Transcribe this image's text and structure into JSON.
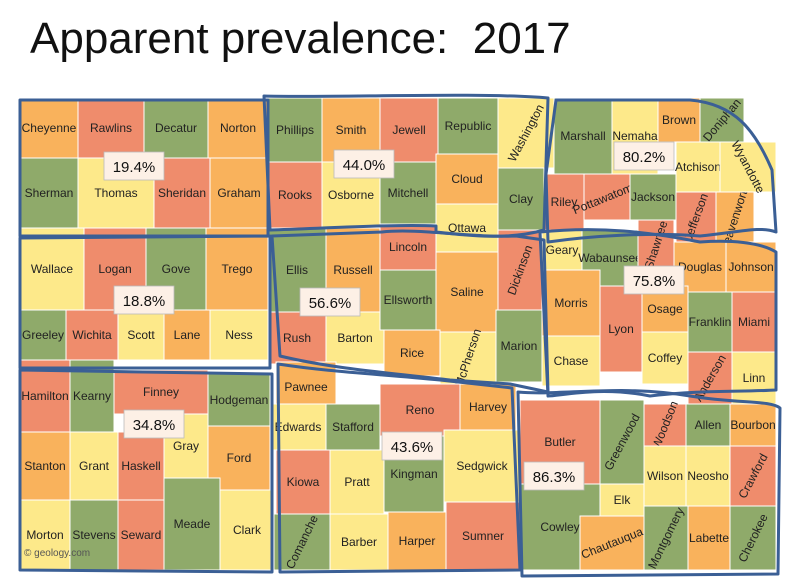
{
  "title": "Apparent prevalence:  2017",
  "watermark": "© geology.com",
  "colors": {
    "green": "#8faa6a",
    "yellow": "#fde98a",
    "orange": "#f9b25c",
    "salmon": "#ef8c6c",
    "region_line": "#3b5f95",
    "county_border": "#ffffff",
    "box_fill": "#fdf0e6"
  },
  "regions": [
    {
      "id": "nw",
      "label": "19.4%"
    },
    {
      "id": "nc",
      "label": "44.0%"
    },
    {
      "id": "ne",
      "label": "80.2%"
    },
    {
      "id": "wc",
      "label": "18.8%"
    },
    {
      "id": "c",
      "label": "56.6%"
    },
    {
      "id": "ec",
      "label": "75.8%"
    },
    {
      "id": "sw",
      "label": "34.8%"
    },
    {
      "id": "sc",
      "label": "43.6%"
    },
    {
      "id": "se",
      "label": "86.3%"
    }
  ],
  "counties": [
    {
      "name": "Cheyenne",
      "color": "orange"
    },
    {
      "name": "Rawlins",
      "color": "salmon"
    },
    {
      "name": "Decatur",
      "color": "green"
    },
    {
      "name": "Norton",
      "color": "orange"
    },
    {
      "name": "Phillips",
      "color": "green"
    },
    {
      "name": "Smith",
      "color": "orange"
    },
    {
      "name": "Jewell",
      "color": "salmon"
    },
    {
      "name": "Republic",
      "color": "green"
    },
    {
      "name": "Washington",
      "color": "yellow"
    },
    {
      "name": "Marshall",
      "color": "green"
    },
    {
      "name": "Nemaha",
      "color": "yellow"
    },
    {
      "name": "Brown",
      "color": "orange"
    },
    {
      "name": "Doniphan",
      "color": "green"
    },
    {
      "name": "Sherman",
      "color": "green"
    },
    {
      "name": "Thomas",
      "color": "yellow"
    },
    {
      "name": "Sheridan",
      "color": "salmon"
    },
    {
      "name": "Graham",
      "color": "orange"
    },
    {
      "name": "Rooks",
      "color": "salmon"
    },
    {
      "name": "Osborne",
      "color": "yellow"
    },
    {
      "name": "Mitchell",
      "color": "green"
    },
    {
      "name": "Cloud",
      "color": "orange"
    },
    {
      "name": "Clay",
      "color": "green"
    },
    {
      "name": "Riley",
      "color": "salmon"
    },
    {
      "name": "Pottawatomie",
      "color": "salmon"
    },
    {
      "name": "Jackson",
      "color": "green"
    },
    {
      "name": "Atchison",
      "color": "yellow"
    },
    {
      "name": "Jefferson",
      "color": "salmon"
    },
    {
      "name": "Leavenworth",
      "color": "orange"
    },
    {
      "name": "Wyandotte",
      "color": "yellow"
    },
    {
      "name": "Ottawa",
      "color": "yellow"
    },
    {
      "name": "Wallace",
      "color": "yellow"
    },
    {
      "name": "Logan",
      "color": "salmon"
    },
    {
      "name": "Gove",
      "color": "green"
    },
    {
      "name": "Trego",
      "color": "orange"
    },
    {
      "name": "Ellis",
      "color": "green"
    },
    {
      "name": "Russell",
      "color": "orange"
    },
    {
      "name": "Lincoln",
      "color": "salmon"
    },
    {
      "name": "Saline",
      "color": "orange"
    },
    {
      "name": "Dickinson",
      "color": "salmon"
    },
    {
      "name": "Geary",
      "color": "yellow"
    },
    {
      "name": "Wabaunsee",
      "color": "green"
    },
    {
      "name": "Shawnee",
      "color": "salmon"
    },
    {
      "name": "Douglas",
      "color": "orange"
    },
    {
      "name": "Johnson",
      "color": "orange"
    },
    {
      "name": "Greeley",
      "color": "green"
    },
    {
      "name": "Wichita",
      "color": "salmon"
    },
    {
      "name": "Scott",
      "color": "yellow"
    },
    {
      "name": "Lane",
      "color": "orange"
    },
    {
      "name": "Ness",
      "color": "yellow"
    },
    {
      "name": "Rush",
      "color": "salmon"
    },
    {
      "name": "Barton",
      "color": "yellow"
    },
    {
      "name": "Ellsworth",
      "color": "green"
    },
    {
      "name": "Rice",
      "color": "orange"
    },
    {
      "name": "McPherson",
      "color": "yellow"
    },
    {
      "name": "Marion",
      "color": "green"
    },
    {
      "name": "Morris",
      "color": "orange"
    },
    {
      "name": "Lyon",
      "color": "salmon"
    },
    {
      "name": "Osage",
      "color": "orange"
    },
    {
      "name": "Franklin",
      "color": "green"
    },
    {
      "name": "Miami",
      "color": "salmon"
    },
    {
      "name": "Chase",
      "color": "yellow"
    },
    {
      "name": "Coffey",
      "color": "yellow"
    },
    {
      "name": "Anderson",
      "color": "salmon"
    },
    {
      "name": "Linn",
      "color": "yellow"
    },
    {
      "name": "Hamilton",
      "color": "salmon"
    },
    {
      "name": "Kearny",
      "color": "green"
    },
    {
      "name": "Finney",
      "color": "salmon"
    },
    {
      "name": "Hodgeman",
      "color": "green"
    },
    {
      "name": "Pawnee",
      "color": "orange"
    },
    {
      "name": "Edwards",
      "color": "yellow"
    },
    {
      "name": "Stafford",
      "color": "green"
    },
    {
      "name": "Reno",
      "color": "salmon"
    },
    {
      "name": "Harvey",
      "color": "orange"
    },
    {
      "name": "Butler",
      "color": "salmon"
    },
    {
      "name": "Greenwood",
      "color": "green"
    },
    {
      "name": "Woodson",
      "color": "salmon"
    },
    {
      "name": "Allen",
      "color": "green"
    },
    {
      "name": "Bourbon",
      "color": "orange"
    },
    {
      "name": "Stanton",
      "color": "orange"
    },
    {
      "name": "Grant",
      "color": "yellow"
    },
    {
      "name": "Haskell",
      "color": "salmon"
    },
    {
      "name": "Gray",
      "color": "yellow"
    },
    {
      "name": "Ford",
      "color": "orange"
    },
    {
      "name": "Kiowa",
      "color": "salmon"
    },
    {
      "name": "Pratt",
      "color": "yellow"
    },
    {
      "name": "Kingman",
      "color": "green"
    },
    {
      "name": "Sedgwick",
      "color": "yellow"
    },
    {
      "name": "Elk",
      "color": "yellow"
    },
    {
      "name": "Wilson",
      "color": "yellow"
    },
    {
      "name": "Neosho",
      "color": "yellow"
    },
    {
      "name": "Crawford",
      "color": "salmon"
    },
    {
      "name": "Morton",
      "color": "yellow"
    },
    {
      "name": "Stevens",
      "color": "green"
    },
    {
      "name": "Seward",
      "color": "salmon"
    },
    {
      "name": "Meade",
      "color": "green"
    },
    {
      "name": "Clark",
      "color": "yellow"
    },
    {
      "name": "Comanche",
      "color": "green"
    },
    {
      "name": "Barber",
      "color": "yellow"
    },
    {
      "name": "Harper",
      "color": "orange"
    },
    {
      "name": "Sumner",
      "color": "salmon"
    },
    {
      "name": "Cowley",
      "color": "green"
    },
    {
      "name": "Chautauqua",
      "color": "orange"
    },
    {
      "name": "Montgomery",
      "color": "green"
    },
    {
      "name": "Labette",
      "color": "orange"
    },
    {
      "name": "Cherokee",
      "color": "green"
    }
  ]
}
